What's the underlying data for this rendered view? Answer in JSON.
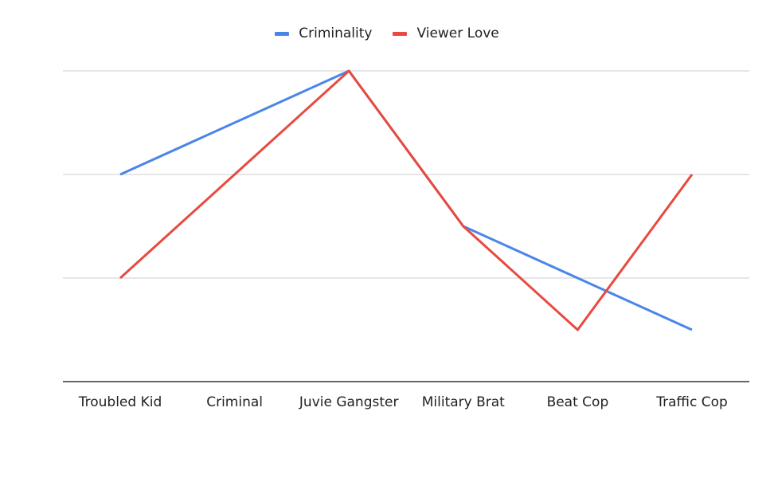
{
  "chart_data": {
    "type": "line",
    "title": "",
    "xlabel": "",
    "ylabel": "",
    "categories": [
      "Troubled Kid",
      "Criminal",
      "Juvie Gangster",
      "Military Brat",
      "Beat Cop",
      "Traffic Cop"
    ],
    "series": [
      {
        "name": "Criminality",
        "color": "#4a86e8",
        "values": [
          4,
          5,
          6,
          3,
          2,
          1
        ]
      },
      {
        "name": "Viewer Love",
        "color": "#e84a3f",
        "values": [
          2,
          4,
          6,
          3,
          1,
          4
        ]
      }
    ],
    "ylim": [
      0,
      6
    ],
    "yticks": [
      0,
      2,
      4,
      6
    ],
    "grid": true,
    "legend_position": "top-center"
  }
}
